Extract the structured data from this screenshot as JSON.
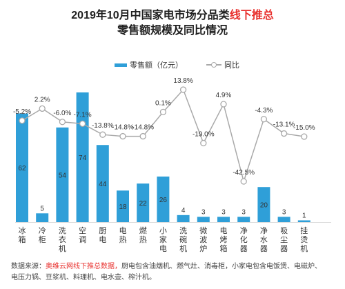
{
  "title_line1_prefix": "2019年10月中国家电市场分品类",
  "title_line1_highlight": "线下推总",
  "title_line2": "零售额规模及同比情况",
  "legend": {
    "bar": "零售额（亿元）",
    "line": "同比"
  },
  "source": {
    "label": "数据来源：",
    "highlight": "奥维云网线下推总数据，",
    "text1": "厨电包含油烟机、燃气灶、消毒柜，小家电包含电饭煲、电磁炉、",
    "text2": "电压力锅、豆浆机、料理机、电水壶、榨汁机。"
  },
  "colors": {
    "bar": "#2f9fd8",
    "line": "#a9a9a9",
    "highlight": "#e8322f"
  },
  "chart_data": {
    "type": "bar",
    "categories": [
      "冰箱",
      "冷柜",
      "洗衣机",
      "空调",
      "厨电",
      "电热",
      "燃热",
      "小家电",
      "洗碗机",
      "微波炉",
      "电烤箱",
      "净化器",
      "净水器",
      "吸尘器",
      "挂烫机"
    ],
    "category_lines": [
      [
        "冰",
        "箱"
      ],
      [
        "冷",
        "柜"
      ],
      [
        "洗",
        "衣",
        "机"
      ],
      [
        "空",
        "调"
      ],
      [
        "厨",
        "电"
      ],
      [
        "电",
        "热"
      ],
      [
        "燃",
        "热"
      ],
      [
        "小",
        "家",
        "电"
      ],
      [
        "洗",
        "碗",
        "机"
      ],
      [
        "微",
        "波",
        "炉"
      ],
      [
        "电",
        "烤",
        "箱"
      ],
      [
        "净",
        "化",
        "器"
      ],
      [
        "净",
        "水",
        "器"
      ],
      [
        "吸",
        "尘",
        "器"
      ],
      [
        "挂",
        "烫",
        "机"
      ]
    ],
    "series": [
      {
        "name": "零售额（亿元）",
        "type": "bar",
        "values": [
          62,
          5,
          54,
          74,
          44,
          18,
          22,
          26,
          4,
          3,
          3,
          3,
          20,
          3,
          1
        ]
      },
      {
        "name": "同比",
        "type": "line",
        "values": [
          -5.2,
          2.2,
          -6.0,
          -7.1,
          -13.8,
          -14.8,
          -14.8,
          0.1,
          13.8,
          -19.0,
          4.9,
          -42.5,
          -4.3,
          -13.1,
          -15.0
        ]
      }
    ],
    "bar_labels": [
      "62",
      "5",
      "54",
      "74",
      "44",
      "18",
      "22",
      "26",
      "4",
      "3",
      "3",
      "3",
      "20",
      "3",
      "1"
    ],
    "line_labels": [
      "-5.2%",
      "2.2%",
      "-6.0%",
      "-7.1%",
      "-13.8%",
      "-14.8%",
      "-14.8%",
      "0.1%",
      "13.8%",
      "-19.0%",
      "4.9%",
      "-42.5%",
      "-4.3%",
      "-13.1%",
      "-15.0%"
    ]
  }
}
